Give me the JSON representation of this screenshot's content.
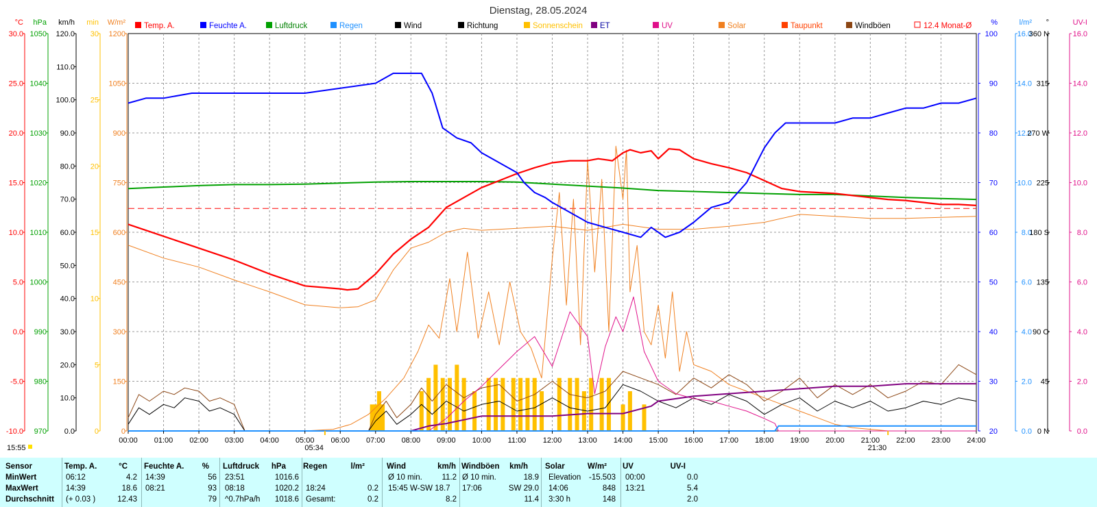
{
  "title": "Dienstag, 28.05.2024",
  "legend": [
    {
      "label": "Temp. A.",
      "color": "#ff0000",
      "text": "#ff0000",
      "kind": "box"
    },
    {
      "label": "Feuchte A.",
      "color": "#0000ff",
      "text": "#0000ff",
      "kind": "box"
    },
    {
      "label": "Luftdruck",
      "color": "#00a000",
      "text": "#008000",
      "kind": "box"
    },
    {
      "label": "Regen",
      "color": "#1e90ff",
      "text": "#1e90ff",
      "kind": "box"
    },
    {
      "label": "Wind",
      "color": "#000000",
      "text": "#000000",
      "kind": "box"
    },
    {
      "label": "Richtung",
      "color": "#000000",
      "text": "#000000",
      "kind": "box"
    },
    {
      "label": "Sonnenschein",
      "color": "#ffc000",
      "text": "#ffc000",
      "kind": "box"
    },
    {
      "label": "ET",
      "color": "#800080",
      "text": "#0000a0",
      "kind": "box"
    },
    {
      "label": "UV",
      "color": "#e0108a",
      "text": "#e0108a",
      "kind": "box"
    },
    {
      "label": "Solar",
      "color": "#f08020",
      "text": "#f08020",
      "kind": "box"
    },
    {
      "label": "Taupunkt",
      "color": "#ff4000",
      "text": "#ff4000",
      "kind": "box"
    },
    {
      "label": "Windböen",
      "color": "#8b4513",
      "text": "#000000",
      "kind": "box"
    },
    {
      "label": "12.4 Monat-Ø",
      "color": "#ff0000",
      "text": "#ff0000",
      "kind": "open"
    }
  ],
  "axis_units": {
    "temp": "°C",
    "pressure": "hPa",
    "wind": "km/h",
    "sunmin": "min",
    "solar": "W/m²",
    "humidity": "%",
    "rain": "l/m²",
    "direction": "°",
    "uv": "UV-I"
  },
  "colors": {
    "temp": "#ff0000",
    "pressure": "#00a000",
    "wind": "#000000",
    "sun": "#ffc000",
    "solar": "#f08020",
    "humidity": "#0000ff",
    "rain": "#1e90ff",
    "uv": "#e0108a"
  },
  "sunrise": "05:34",
  "sunset": "21:30",
  "current_time": "15:55",
  "chart_data": {
    "type": "line",
    "x_unit": "hour",
    "x_ticks": [
      "00:00",
      "01:00",
      "02:00",
      "03:00",
      "04:00",
      "05:00",
      "06:00",
      "07:00",
      "08:00",
      "09:00",
      "10:00",
      "11:00",
      "12:00",
      "13:00",
      "14:00",
      "15:00",
      "16:00",
      "17:00",
      "18:00",
      "19:00",
      "20:00",
      "21:00",
      "22:00",
      "23:00",
      "24:00"
    ],
    "grid": true,
    "axes": {
      "temp": {
        "min": -10,
        "max": 30,
        "ticks": [
          "30.0",
          "25.0",
          "20.0",
          "15.0",
          "10.0",
          "5.0",
          "0.0",
          "-5.0",
          "-10.0"
        ]
      },
      "pressure": {
        "min": 970,
        "max": 1050,
        "ticks": [
          "1050",
          "1040",
          "1030",
          "1020",
          "1010",
          "1000",
          "990",
          "980",
          "970"
        ]
      },
      "wind": {
        "min": 0,
        "max": 120,
        "ticks": [
          "120.0",
          "110.0",
          "100.0",
          "90.0",
          "80.0",
          "70.0",
          "60.0",
          "50.0",
          "40.0",
          "30.0",
          "20.0",
          "10.0",
          "0.0"
        ]
      },
      "sunmin": {
        "min": 0,
        "max": 30,
        "ticks": [
          "30",
          "25",
          "20",
          "15",
          "10",
          "5",
          "0"
        ]
      },
      "solar": {
        "min": 0,
        "max": 1200,
        "ticks": [
          "1200",
          "1050",
          "900",
          "750",
          "600",
          "450",
          "300",
          "150",
          "0"
        ]
      },
      "humidity": {
        "min": 20,
        "max": 100,
        "ticks": [
          "100",
          "90",
          "80",
          "70",
          "60",
          "50",
          "40",
          "30",
          "20"
        ]
      },
      "rain": {
        "min": 0,
        "max": 16,
        "ticks": [
          "16.0",
          "14.0",
          "12.0",
          "10.0",
          "8.0",
          "6.0",
          "4.0",
          "2.0",
          "0.0"
        ]
      },
      "direction": {
        "min": 0,
        "max": 360,
        "ticks": [
          "360 N",
          "315",
          "270 W",
          "225",
          "180 S",
          "135",
          "90 O",
          "45",
          "0 N"
        ]
      },
      "uv": {
        "min": 0,
        "max": 16,
        "ticks": [
          "16.0",
          "14.0",
          "12.0",
          "10.0",
          "8.0",
          "6.0",
          "4.0",
          "2.0",
          "0.0"
        ]
      }
    },
    "month_avg_temp": 12.4,
    "series": [
      {
        "name": "Temp. A.",
        "axis": "temp",
        "x": [
          0,
          1,
          2,
          3,
          4,
          5,
          6,
          6.2,
          6.5,
          7,
          7.5,
          8,
          8.5,
          9,
          9.5,
          10,
          10.5,
          11,
          11.5,
          12,
          12.5,
          13,
          13.3,
          13.7,
          14,
          14.2,
          14.5,
          14.8,
          15,
          15.3,
          15.6,
          16,
          16.5,
          17,
          17.5,
          18,
          18.5,
          19,
          19.5,
          20,
          20.5,
          21,
          21.5,
          22,
          22.5,
          23,
          23.5,
          24
        ],
        "y": [
          10.8,
          9.6,
          8.4,
          7.2,
          5.8,
          4.6,
          4.3,
          4.2,
          4.3,
          5.8,
          7.8,
          9.3,
          10.5,
          12.5,
          13.5,
          14.5,
          15.2,
          15.9,
          16.5,
          17.0,
          17.2,
          17.2,
          17.4,
          17.2,
          18.0,
          18.3,
          18.0,
          18.2,
          17.4,
          18.4,
          18.3,
          17.4,
          16.9,
          16.5,
          16.0,
          15.2,
          14.4,
          14.1,
          14.0,
          13.9,
          13.7,
          13.5,
          13.3,
          13.2,
          13.0,
          12.8,
          12.8,
          12.7
        ]
      },
      {
        "name": "Taupunkt",
        "axis": "temp",
        "x": [
          0,
          1,
          2,
          3,
          4,
          5,
          6,
          6.5,
          7,
          7.5,
          8,
          8.5,
          9,
          9.5,
          10,
          11,
          12,
          13,
          14,
          15,
          16,
          17,
          18,
          19,
          20,
          21,
          22,
          23,
          24
        ],
        "y": [
          8.7,
          7.4,
          6.5,
          5.2,
          4.0,
          2.7,
          2.4,
          2.5,
          3.2,
          6.2,
          8.4,
          9.0,
          10.0,
          10.4,
          10.2,
          10.4,
          10.6,
          10.2,
          10.8,
          10.3,
          10.3,
          10.6,
          11.0,
          11.8,
          11.6,
          11.4,
          11.4,
          11.5,
          11.6
        ]
      },
      {
        "name": "Feuchte A.",
        "axis": "humidity",
        "x": [
          0,
          0.5,
          1,
          1.8,
          2,
          3,
          4,
          5,
          6,
          7,
          7.5,
          8,
          8.3,
          8.6,
          8.9,
          9.3,
          9.7,
          10,
          10.5,
          11,
          11.2,
          11.5,
          11.8,
          12,
          12.5,
          13,
          13.5,
          14,
          14.5,
          14.8,
          15.2,
          15.6,
          16,
          16.5,
          17,
          17.5,
          18,
          18.3,
          18.6,
          19,
          19.5,
          20,
          20.5,
          21,
          21.5,
          22,
          22.5,
          23,
          23.5,
          24
        ],
        "y": [
          86,
          87,
          87,
          88,
          88,
          88,
          88,
          88,
          89,
          90,
          92,
          92,
          92,
          88,
          81,
          79,
          78,
          76,
          74,
          72,
          70,
          68,
          67,
          66,
          64,
          62,
          61,
          60,
          59,
          61,
          59,
          60,
          62,
          65,
          66,
          70,
          77,
          80,
          82,
          82,
          82,
          82,
          83,
          83,
          84,
          85,
          85,
          86,
          86,
          87
        ]
      },
      {
        "name": "Luftdruck",
        "axis": "pressure",
        "x": [
          0,
          1,
          2,
          3,
          4,
          5,
          6,
          7,
          8,
          9,
          10,
          11,
          12,
          13,
          14,
          15,
          16,
          17,
          18,
          19,
          20,
          21,
          22,
          23,
          24
        ],
        "y": [
          1018.8,
          1019.1,
          1019.4,
          1019.6,
          1019.6,
          1019.7,
          1019.9,
          1020.1,
          1020.2,
          1020.2,
          1020.2,
          1020.1,
          1019.7,
          1019.3,
          1018.9,
          1018.4,
          1018.2,
          1018.0,
          1017.8,
          1017.6,
          1017.6,
          1017.3,
          1017.0,
          1016.8,
          1016.6
        ]
      },
      {
        "name": "Wind",
        "axis": "wind",
        "x": [
          0,
          0.3,
          0.6,
          1,
          1.3,
          1.6,
          2,
          2.3,
          2.6,
          3,
          3.3,
          6.8,
          7,
          7.3,
          7.6,
          8,
          8.3,
          8.6,
          9,
          9.5,
          10,
          10.5,
          11,
          11.5,
          12,
          12.5,
          13,
          13.5,
          14,
          14.5,
          15,
          15.5,
          16,
          16.5,
          17,
          17.5,
          18,
          18.5,
          19,
          19.5,
          20,
          20.5,
          21,
          21.5,
          22,
          22.5,
          23,
          23.5,
          24
        ],
        "y": [
          2,
          7,
          5,
          8,
          7,
          10,
          9,
          6,
          7,
          5,
          0,
          0,
          3,
          6,
          2,
          5,
          8,
          5,
          9,
          6,
          8,
          9,
          6,
          7,
          10,
          7,
          6,
          7,
          14,
          12,
          9,
          7,
          10,
          8,
          11,
          9,
          5,
          8,
          10,
          6,
          9,
          7,
          9,
          6,
          7,
          9,
          8,
          10,
          9
        ]
      },
      {
        "name": "Windböen",
        "axis": "wind",
        "x": [
          0,
          0.3,
          0.6,
          1,
          1.3,
          1.6,
          2,
          2.3,
          2.6,
          3,
          3.3,
          6.8,
          7,
          7.3,
          7.6,
          8,
          8.3,
          8.6,
          9,
          9.5,
          10,
          10.5,
          11,
          11.5,
          12,
          12.5,
          13,
          13.5,
          14,
          14.5,
          15,
          15.5,
          16,
          16.5,
          17,
          17.5,
          18,
          18.5,
          19,
          19.5,
          20,
          20.5,
          21,
          21.5,
          22,
          22.5,
          23,
          23.5,
          24
        ],
        "y": [
          4,
          11,
          9,
          12,
          11,
          13,
          12,
          9,
          10,
          8,
          0,
          0,
          5,
          9,
          4,
          8,
          13,
          9,
          14,
          10,
          13,
          14,
          9,
          11,
          15,
          11,
          10,
          12,
          18,
          16,
          14,
          11,
          16,
          13,
          17,
          14,
          9,
          12,
          16,
          10,
          14,
          11,
          14,
          10,
          12,
          15,
          14,
          20,
          17
        ]
      },
      {
        "name": "Solar",
        "axis": "solar",
        "x": [
          0,
          5,
          5.8,
          6.3,
          6.8,
          7.3,
          7.8,
          8.2,
          8.5,
          8.8,
          9.1,
          9.3,
          9.6,
          9.9,
          10.2,
          10.5,
          10.8,
          11.1,
          11.4,
          11.7,
          12,
          12.2,
          12.4,
          12.6,
          12.8,
          13,
          13.2,
          13.4,
          13.6,
          13.8,
          14,
          14.1,
          14.2,
          14.4,
          14.6,
          14.8,
          15,
          15.2,
          15.4,
          15.6,
          15.8,
          16,
          16.5,
          17,
          17.5,
          18,
          18.5,
          19,
          19.5,
          20,
          20.5,
          21,
          21.5,
          24
        ],
        "y": [
          0,
          0,
          5,
          20,
          50,
          100,
          160,
          240,
          320,
          280,
          460,
          300,
          540,
          280,
          420,
          260,
          450,
          300,
          250,
          160,
          520,
          720,
          380,
          700,
          260,
          820,
          480,
          760,
          300,
          860,
          700,
          848,
          420,
          560,
          300,
          260,
          380,
          220,
          420,
          180,
          300,
          200,
          180,
          140,
          120,
          100,
          80,
          60,
          40,
          20,
          10,
          5,
          0,
          0
        ]
      },
      {
        "name": "UV",
        "axis": "uv",
        "x": [
          0,
          8.5,
          9,
          9.5,
          10,
          10.5,
          11,
          11.5,
          12,
          12.5,
          13,
          13.2,
          13.5,
          13.8,
          14,
          14.3,
          14.6,
          15,
          15.5,
          16,
          16.5,
          17,
          17.5,
          18,
          18.3,
          18.4,
          24
        ],
        "y": [
          0,
          0,
          0.5,
          1.2,
          1.8,
          2.5,
          3.2,
          3.8,
          2.6,
          4.8,
          3.8,
          1.5,
          3.4,
          4.6,
          4.0,
          5.4,
          3.2,
          2.0,
          1.5,
          1.3,
          1.2,
          1.0,
          0.8,
          0.5,
          0.3,
          0,
          0
        ]
      },
      {
        "name": "ET",
        "axis": "rain",
        "x": [
          0,
          8,
          8.5,
          9,
          10,
          11,
          12,
          13,
          14,
          14.8,
          15,
          16,
          17,
          18,
          19,
          20,
          21,
          22,
          23,
          24
        ],
        "y": [
          0,
          0,
          0.2,
          0.3,
          0.6,
          0.6,
          0.6,
          0.7,
          0.7,
          1.0,
          1.2,
          1.4,
          1.5,
          1.6,
          1.7,
          1.8,
          1.8,
          1.9,
          1.9,
          1.9
        ]
      },
      {
        "name": "Regen",
        "axis": "rain",
        "x": [
          0,
          18.3,
          18.4,
          24
        ],
        "y": [
          0,
          0,
          0.2,
          0.2
        ]
      },
      {
        "name": "Sonnenschein",
        "axis": "sunmin",
        "type": "bar",
        "x": [
          6.9,
          7.0,
          7.1,
          7.2,
          8.3,
          8.5,
          8.7,
          8.9,
          9.1,
          9.3,
          9.5,
          9.8,
          10.2,
          10.4,
          10.6,
          10.9,
          11.1,
          11.3,
          11.5,
          11.7,
          12.2,
          12.5,
          12.7,
          12.9,
          13.1,
          13.4,
          13.6,
          14.0,
          14.2,
          14.6
        ],
        "y": [
          2,
          2,
          3,
          2,
          3,
          4,
          5,
          4,
          4,
          5,
          4,
          3,
          4,
          4,
          4,
          4,
          4,
          4,
          4,
          3,
          4,
          4,
          4,
          3,
          4,
          4,
          4,
          2,
          3,
          2
        ]
      }
    ]
  },
  "stats": {
    "headers": [
      "Sensor",
      "Temp. A.",
      "°C",
      "Feuchte A.",
      "%",
      "Luftdruck",
      "hPa",
      "Regen",
      "l/m²",
      "Wind",
      "km/h",
      "Windböen",
      "km/h",
      "Solar",
      "W/m²",
      "UV",
      "UV-I"
    ],
    "rows": [
      {
        "label": "MinWert",
        "cells": [
          "06:12",
          "4.2",
          "14:39",
          "56",
          "23:51",
          "1016.6",
          "",
          "",
          "Ø 10 min.",
          "11.2",
          "Ø 10 min.",
          "18.9",
          "Elevation",
          "-15.503",
          "00:00",
          "0.0"
        ]
      },
      {
        "label": "MaxWert",
        "cells": [
          "14:39",
          "18.6",
          "08:21",
          "93",
          "08:18",
          "1020.2",
          "18:24",
          "0.2",
          "15:45   W-SW 18.7",
          "",
          "17:06",
          "SW 29.0",
          "14:06",
          "848",
          "13:21",
          "5.4"
        ]
      },
      {
        "label": "Durchschnitt",
        "cells": [
          "(+ 0.03 )",
          "12.43",
          "",
          "79",
          "^0.7hPa/h",
          "1018.6",
          "Gesamt:",
          "0.2",
          "",
          "8.2",
          "",
          "11.4",
          "3:30 h",
          "148",
          "",
          "2.0"
        ]
      }
    ]
  }
}
